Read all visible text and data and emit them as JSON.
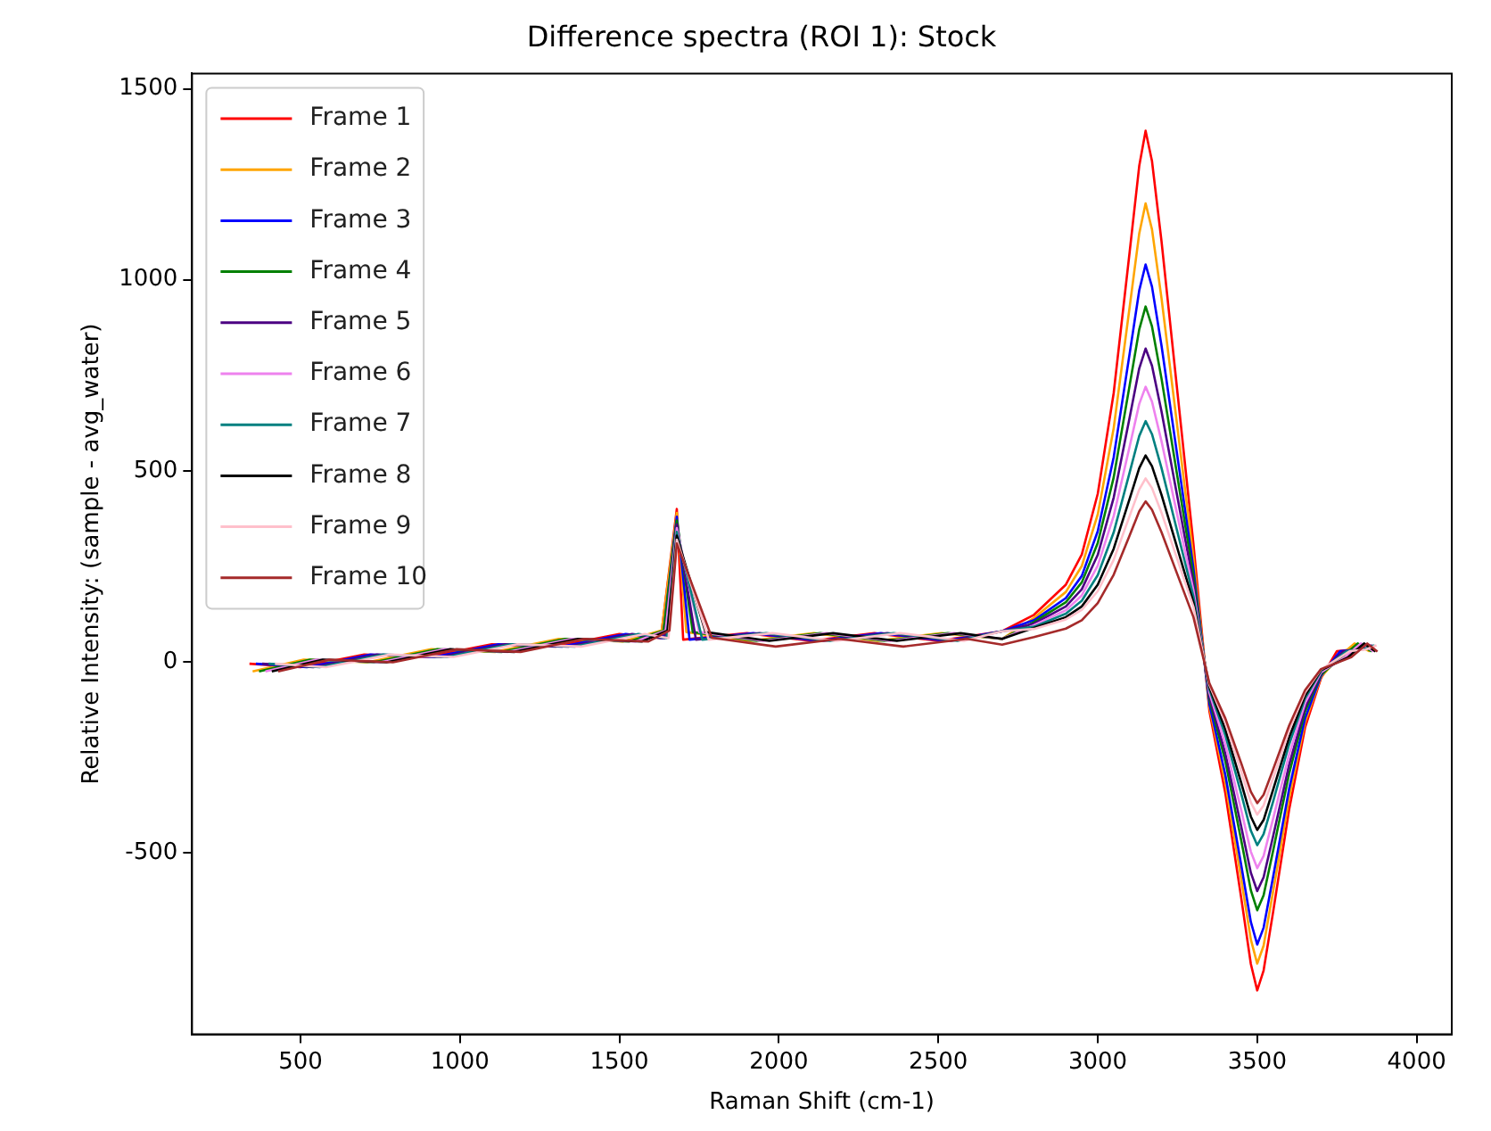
{
  "chart_data": {
    "type": "line",
    "title": "Difference spectra (ROI 1): Stock",
    "xlabel": "Raman Shift (cm-1)",
    "ylabel": "Relative Intensity: (sample - avg_water)",
    "series": [
      {
        "name": "Frame 1",
        "color": "#ff0000",
        "x": [
          340,
          500,
          700,
          900,
          1100,
          1300,
          1500,
          1630,
          1680,
          1700,
          1900,
          2100,
          2300,
          2500,
          2700,
          2800,
          2900,
          2950,
          3000,
          3050,
          3100,
          3130,
          3150,
          3170,
          3200,
          3250,
          3300,
          3350,
          3400,
          3450,
          3480,
          3500,
          3520,
          3550,
          3600,
          3650,
          3700,
          3750,
          3800,
          3850
        ],
        "values": [
          -5,
          -14,
          19,
          13,
          46,
          40,
          73,
          62,
          400,
          58,
          75,
          55,
          75,
          55,
          80,
          123,
          202,
          281,
          440,
          704,
          1073,
          1298,
          1390,
          1311,
          1100,
          704,
          308,
          -129,
          -344,
          -619,
          -791,
          -860,
          -808,
          -654,
          -387,
          -172,
          -43,
          28,
          32,
          43
        ]
      },
      {
        "name": "Frame 2",
        "color": "#ffa500",
        "x": [
          350,
          510,
          710,
          910,
          1110,
          1310,
          1510,
          1633,
          1680,
          1710,
          1910,
          2110,
          2310,
          2510,
          2700,
          2800,
          2900,
          2950,
          3000,
          3050,
          3100,
          3130,
          3150,
          3170,
          3200,
          3250,
          3300,
          3350,
          3400,
          3450,
          3480,
          3500,
          3520,
          3550,
          3600,
          3650,
          3700,
          3755,
          3805,
          3853
        ],
        "values": [
          -25,
          6,
          -1,
          33,
          26,
          60,
          53,
          82,
          390,
          78,
          55,
          75,
          55,
          75,
          60,
          115,
          183,
          251,
          386,
          612,
          929,
          1121,
          1200,
          1132,
          951,
          612,
          273,
          -119,
          -316,
          -569,
          -727,
          -790,
          -743,
          -600,
          -356,
          -158,
          -40,
          12,
          48,
          27
        ]
      },
      {
        "name": "Frame 3",
        "color": "#0000ff",
        "x": [
          360,
          520,
          720,
          920,
          1120,
          1320,
          1520,
          1636,
          1680,
          1720,
          1920,
          2120,
          2320,
          2520,
          2700,
          2800,
          2900,
          2950,
          3000,
          3050,
          3100,
          3130,
          3150,
          3170,
          3200,
          3250,
          3300,
          3350,
          3400,
          3450,
          3480,
          3500,
          3520,
          3550,
          3600,
          3650,
          3700,
          3760,
          3810,
          3856
        ],
        "values": [
          -5,
          -14,
          19,
          13,
          46,
          40,
          73,
          62,
          380,
          58,
          75,
          55,
          75,
          55,
          80,
          109,
          167,
          225,
          342,
          536,
          807,
          972,
          1040,
          982,
          827,
          536,
          245,
          -111,
          -296,
          -533,
          -681,
          -740,
          -696,
          -562,
          -333,
          -148,
          -37,
          28,
          32,
          43
        ]
      },
      {
        "name": "Frame 4",
        "color": "#008000",
        "x": [
          370,
          530,
          730,
          930,
          1130,
          1330,
          1530,
          1639,
          1680,
          1730,
          1930,
          2130,
          2330,
          2530,
          2700,
          2800,
          2900,
          2950,
          3000,
          3050,
          3100,
          3130,
          3150,
          3170,
          3200,
          3250,
          3300,
          3350,
          3400,
          3450,
          3480,
          3500,
          3520,
          3550,
          3600,
          3650,
          3700,
          3765,
          3815,
          3859
        ],
        "values": [
          -25,
          6,
          -1,
          33,
          26,
          60,
          53,
          82,
          370,
          78,
          55,
          75,
          55,
          75,
          60,
          104,
          156,
          208,
          311,
          483,
          724,
          870,
          930,
          878,
          741,
          483,
          225,
          -98,
          -260,
          -468,
          -598,
          -650,
          -611,
          -494,
          -293,
          -130,
          -33,
          12,
          48,
          27
        ]
      },
      {
        "name": "Frame 5",
        "color": "#4b0082",
        "x": [
          380,
          540,
          740,
          940,
          1140,
          1340,
          1540,
          1642,
          1680,
          1740,
          1940,
          2140,
          2340,
          2540,
          2700,
          2800,
          2900,
          2950,
          3000,
          3050,
          3100,
          3130,
          3150,
          3170,
          3200,
          3250,
          3300,
          3350,
          3400,
          3450,
          3480,
          3500,
          3520,
          3550,
          3600,
          3650,
          3700,
          3770,
          3820,
          3862
        ],
        "values": [
          -5,
          -14,
          19,
          13,
          46,
          40,
          73,
          62,
          360,
          58,
          75,
          55,
          75,
          55,
          80,
          100,
          145,
          190,
          280,
          430,
          640,
          768,
          820,
          775,
          655,
          430,
          205,
          -90,
          -240,
          -432,
          -552,
          -600,
          -564,
          -456,
          -270,
          -120,
          -30,
          28,
          32,
          43
        ]
      },
      {
        "name": "Frame 6",
        "color": "#ee82ee",
        "x": [
          390,
          550,
          750,
          950,
          1150,
          1350,
          1550,
          1645,
          1680,
          1750,
          1950,
          2150,
          2350,
          2550,
          2700,
          2800,
          2900,
          2950,
          3000,
          3050,
          3100,
          3130,
          3150,
          3170,
          3200,
          3250,
          3300,
          3350,
          3400,
          3450,
          3480,
          3500,
          3520,
          3550,
          3600,
          3650,
          3700,
          3775,
          3825,
          3865
        ],
        "values": [
          -25,
          6,
          -1,
          33,
          26,
          60,
          53,
          82,
          350,
          78,
          55,
          75,
          55,
          75,
          60,
          96,
          135,
          174,
          252,
          382,
          564,
          675,
          720,
          681,
          577,
          382,
          187,
          -81,
          -216,
          -389,
          -497,
          -540,
          -508,
          -410,
          -243,
          -108,
          -27,
          12,
          48,
          27
        ]
      },
      {
        "name": "Frame 7",
        "color": "#008080",
        "x": [
          400,
          560,
          760,
          960,
          1160,
          1360,
          1560,
          1648,
          1680,
          1760,
          1960,
          2160,
          2360,
          2560,
          2700,
          2800,
          2900,
          2950,
          3000,
          3050,
          3100,
          3130,
          3150,
          3170,
          3200,
          3250,
          3300,
          3350,
          3400,
          3450,
          3480,
          3500,
          3520,
          3550,
          3600,
          3650,
          3700,
          3780,
          3830,
          3868
        ],
        "values": [
          -5,
          -14,
          19,
          13,
          46,
          40,
          73,
          62,
          340,
          58,
          75,
          55,
          75,
          55,
          80,
          92,
          126,
          160,
          227,
          339,
          496,
          591,
          630,
          596,
          507,
          339,
          171,
          -72,
          -192,
          -346,
          -442,
          -480,
          -451,
          -365,
          -216,
          -96,
          -24,
          28,
          32,
          43
        ]
      },
      {
        "name": "Frame 8",
        "color": "#000000",
        "x": [
          410,
          570,
          770,
          970,
          1170,
          1370,
          1570,
          1651,
          1680,
          1770,
          1970,
          2170,
          2370,
          2570,
          2700,
          2800,
          2900,
          2950,
          3000,
          3050,
          3100,
          3130,
          3150,
          3170,
          3200,
          3250,
          3300,
          3350,
          3400,
          3450,
          3480,
          3500,
          3520,
          3550,
          3600,
          3650,
          3700,
          3785,
          3835,
          3871
        ],
        "values": [
          -25,
          6,
          -1,
          33,
          26,
          60,
          53,
          82,
          330,
          78,
          55,
          75,
          55,
          75,
          60,
          89,
          117,
          145,
          202,
          296,
          427,
          507,
          540,
          512,
          437,
          296,
          155,
          -66,
          -176,
          -317,
          -405,
          -440,
          -414,
          -334,
          -198,
          -88,
          -22,
          12,
          48,
          27
        ]
      },
      {
        "name": "Frame 9",
        "color": "#ffc0cb",
        "x": [
          420,
          580,
          780,
          980,
          1180,
          1380,
          1580,
          1654,
          1680,
          1780,
          1980,
          2180,
          2380,
          2580,
          2700,
          2800,
          2900,
          2950,
          3000,
          3050,
          3100,
          3130,
          3150,
          3170,
          3200,
          3250,
          3300,
          3350,
          3400,
          3450,
          3480,
          3500,
          3520,
          3550,
          3600,
          3650,
          3700,
          3790,
          3840,
          3874
        ],
        "values": [
          -5,
          -14,
          19,
          13,
          46,
          40,
          73,
          62,
          320,
          58,
          75,
          55,
          75,
          55,
          80,
          86,
          111,
          136,
          185,
          267,
          382,
          451,
          480,
          455,
          390,
          267,
          144,
          -60,
          -160,
          -288,
          -368,
          -400,
          -376,
          -304,
          -180,
          -80,
          -20,
          28,
          32,
          43
        ]
      },
      {
        "name": "Frame 10",
        "color": "#a52a2a",
        "x": [
          430,
          590,
          790,
          990,
          1190,
          1390,
          1590,
          1657,
          1680,
          1790,
          1990,
          2190,
          2390,
          2590,
          2700,
          2800,
          2900,
          2950,
          3000,
          3050,
          3100,
          3130,
          3150,
          3170,
          3200,
          3250,
          3300,
          3350,
          3400,
          3450,
          3480,
          3500,
          3520,
          3550,
          3600,
          3650,
          3700,
          3795,
          3845,
          3877
        ],
        "values": [
          -25,
          6,
          -1,
          33,
          26,
          60,
          53,
          82,
          310,
          63,
          40,
          60,
          40,
          60,
          45,
          65,
          87,
          109,
          154,
          228,
          331,
          394,
          420,
          398,
          339,
          228,
          117,
          -56,
          -148,
          -266,
          -340,
          -370,
          -348,
          -281,
          -167,
          -74,
          -19,
          12,
          48,
          27
        ]
      }
    ],
    "xlim": [
      160,
      4110
    ],
    "xticks": [
      500,
      1000,
      1500,
      2000,
      2500,
      3000,
      3500,
      4000
    ],
    "ylim": [
      -975,
      1540
    ],
    "yticks": [
      -500,
      0,
      500,
      1000,
      1500
    ],
    "grid": false,
    "legend": "top left",
    "marker": "none",
    "line_style": "solid"
  }
}
